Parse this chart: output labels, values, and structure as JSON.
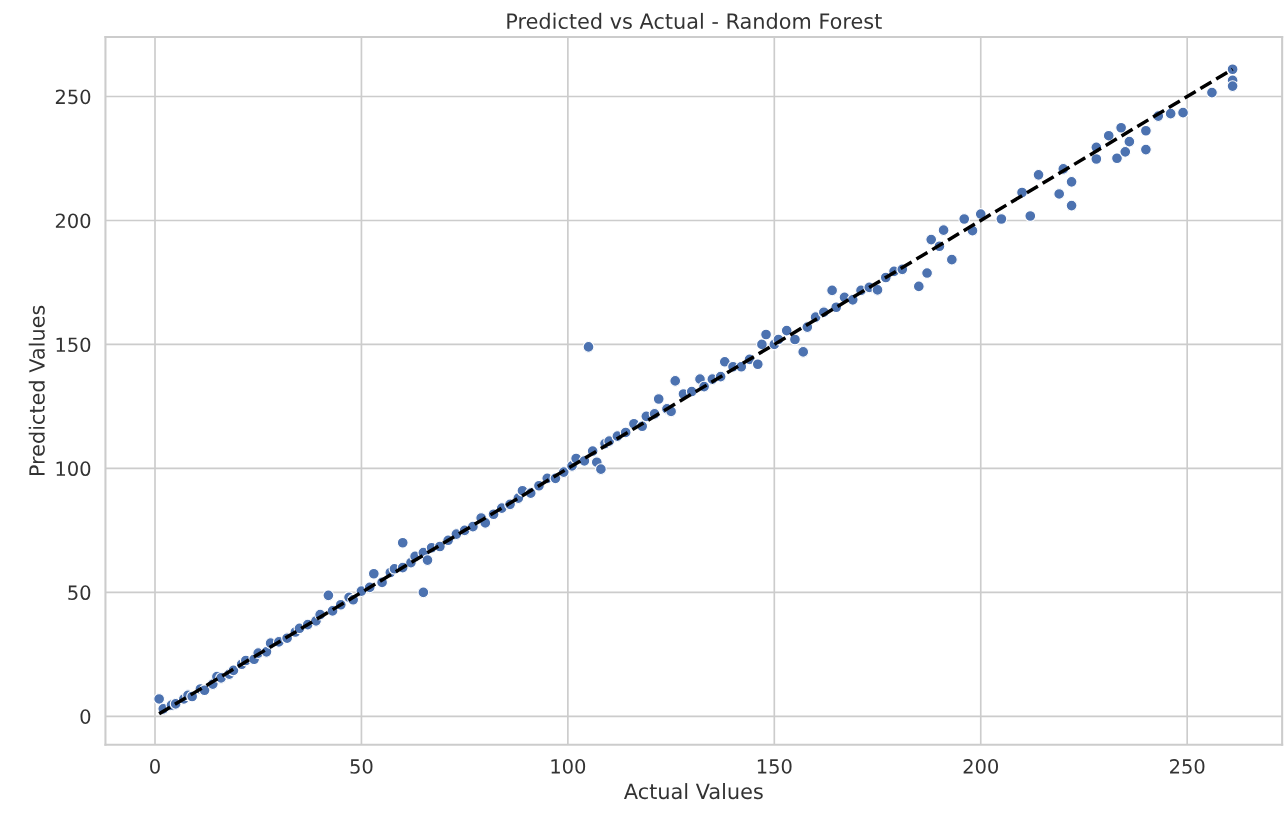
{
  "chart_data": {
    "type": "scatter",
    "title": "Predicted vs Actual - Random Forest",
    "xlabel": "Actual Values",
    "ylabel": "Predicted Values",
    "xlim": [
      -12,
      273
    ],
    "ylim": [
      -11.5,
      274
    ],
    "xticks": [
      0,
      50,
      100,
      150,
      200,
      250
    ],
    "yticks": [
      0,
      50,
      100,
      150,
      200,
      250
    ],
    "grid": true,
    "marker": "circle",
    "series": [
      {
        "color": "#4c72b0",
        "x": [
          1,
          2,
          4,
          5,
          7,
          8,
          9,
          11,
          12,
          14,
          15,
          16,
          18,
          19,
          21,
          22,
          24,
          25,
          27,
          28,
          30,
          32,
          34,
          35,
          37,
          39,
          40,
          42,
          43,
          45,
          47,
          48,
          50,
          52,
          53,
          55,
          57,
          58,
          60,
          60,
          62,
          63,
          65,
          65,
          66,
          67,
          69,
          71,
          73,
          75,
          77,
          79,
          80,
          82,
          84,
          86,
          88,
          89,
          91,
          93,
          95,
          97,
          99,
          101,
          102,
          104,
          105,
          106,
          107,
          108,
          109,
          110,
          112,
          114,
          116,
          118,
          119,
          121,
          122,
          124,
          125,
          126,
          128,
          130,
          132,
          133,
          135,
          137,
          138,
          140,
          142,
          144,
          146,
          147,
          148,
          150,
          151,
          153,
          155,
          157,
          158,
          160,
          162,
          164,
          165,
          167,
          169,
          171,
          173,
          175,
          177,
          179,
          181,
          185,
          187,
          188,
          190,
          191,
          193,
          196,
          198,
          200,
          205,
          210,
          212,
          214,
          219,
          220,
          222,
          222,
          228,
          228,
          231,
          233,
          234,
          235,
          236,
          240,
          240,
          243,
          246,
          249,
          256,
          261,
          261,
          261
        ],
        "values": [
          7,
          3,
          4.5,
          5,
          7,
          8.5,
          8,
          11,
          10.5,
          13,
          16,
          15.5,
          17,
          18.5,
          21,
          22.5,
          23,
          25.5,
          26,
          29.5,
          30,
          31.5,
          34,
          35.5,
          37,
          38.5,
          41,
          48.8,
          42.5,
          45,
          48,
          47,
          50.5,
          52,
          57.5,
          54,
          58,
          59.5,
          60,
          70,
          62,
          64.5,
          66,
          50,
          63,
          68,
          68.5,
          71,
          73.5,
          75,
          76.5,
          80,
          78,
          81.5,
          84,
          85.5,
          88,
          91,
          90,
          93,
          96,
          96,
          98.5,
          101,
          104,
          103,
          149,
          107,
          102.5,
          99.7,
          110,
          111,
          113,
          114.5,
          118,
          117,
          121,
          122,
          128,
          124,
          123,
          135.3,
          130,
          131,
          136,
          133,
          136,
          137,
          143,
          141,
          141,
          144,
          142,
          150,
          154,
          150,
          152,
          155.6,
          152,
          147,
          157,
          161,
          163,
          171.8,
          165,
          169,
          168,
          171.8,
          173,
          172,
          177,
          179.5,
          180.3,
          173.4,
          178.8,
          192.3,
          189.6,
          196.1,
          184.2,
          200.6,
          195.9,
          202.6,
          200.6,
          211.3,
          201.8,
          218.4,
          210.7,
          220.8,
          215.6,
          206,
          229.5,
          224.8,
          234.2,
          225.1,
          237.4,
          227.7,
          231.8,
          236.2,
          228.6,
          242.1,
          243.1,
          243.5,
          251.6,
          261,
          256.5,
          254.2
        ]
      },
      {
        "type": "line",
        "color": "#000000",
        "line_style": "dashed",
        "marker": "none",
        "x": [
          1,
          261
        ],
        "values": [
          1,
          261
        ]
      }
    ]
  }
}
